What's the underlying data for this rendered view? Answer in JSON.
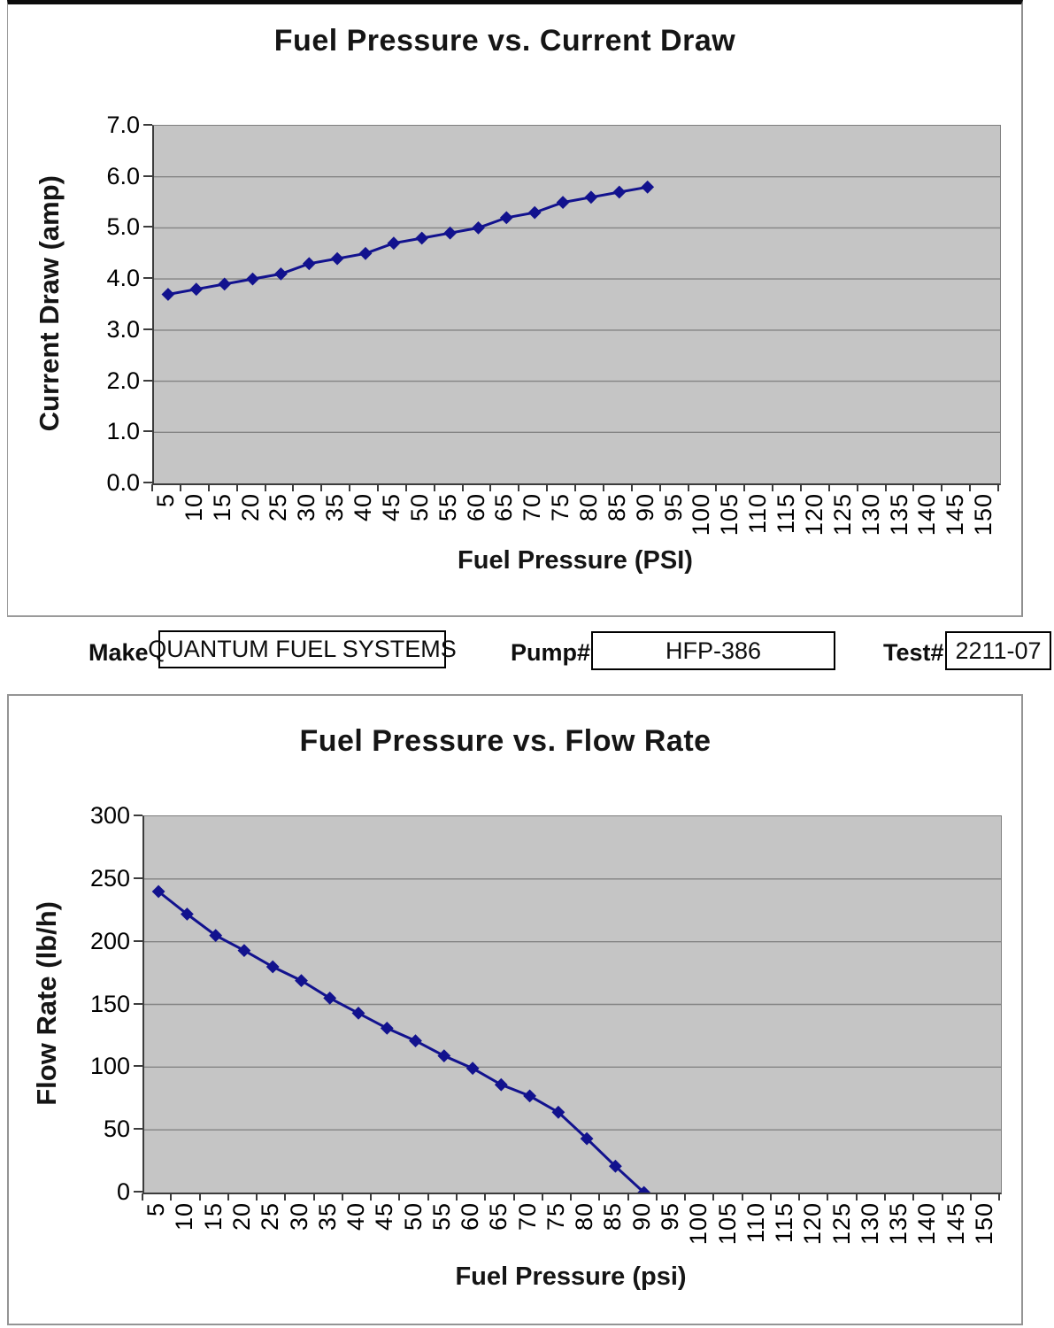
{
  "header_row": {
    "make_label": "Make",
    "make_value": "QUANTUM FUEL SYSTEMS",
    "pump_label": "Pump#",
    "pump_value": "HFP-386",
    "test_label": "Test#",
    "test_value": "2211-07"
  },
  "colors": {
    "plot_bg": "#c5c5c5",
    "gridline": "#848484",
    "series": "#12128e",
    "axis": "#3c3c3c"
  },
  "chart_data": [
    {
      "type": "line",
      "title": "Fuel Pressure vs. Current Draw",
      "xlabel": "Fuel Pressure (PSI)",
      "ylabel": "Current Draw (amp)",
      "ylim": [
        0,
        7
      ],
      "y_tick_labels": [
        "7.0",
        "6.0",
        "5.0",
        "4.0",
        "3.0",
        "2.0",
        "1.0",
        "0.0"
      ],
      "categories": [
        5,
        10,
        15,
        20,
        25,
        30,
        35,
        40,
        45,
        50,
        55,
        60,
        65,
        70,
        75,
        80,
        85,
        90,
        95,
        100,
        105,
        110,
        115,
        120,
        125,
        130,
        135,
        140,
        145,
        150
      ],
      "x": [
        5,
        10,
        15,
        20,
        25,
        30,
        35,
        40,
        45,
        50,
        55,
        60,
        65,
        70,
        75,
        80,
        85,
        90
      ],
      "values": [
        3.7,
        3.8,
        3.9,
        4.0,
        4.1,
        4.3,
        4.4,
        4.5,
        4.7,
        4.8,
        4.9,
        5.0,
        5.2,
        5.3,
        5.5,
        5.6,
        5.7,
        5.8
      ],
      "grid": true,
      "legend": "none",
      "marker": "diamond"
    },
    {
      "type": "line",
      "title": "Fuel Pressure vs. Flow Rate",
      "xlabel": "Fuel Pressure (psi)",
      "ylabel": "Flow Rate (lb/h)",
      "ylim": [
        0,
        300
      ],
      "y_tick_labels": [
        "300",
        "250",
        "200",
        "150",
        "100",
        "50",
        "0"
      ],
      "categories": [
        5,
        10,
        15,
        20,
        25,
        30,
        35,
        40,
        45,
        50,
        55,
        60,
        65,
        70,
        75,
        80,
        85,
        90,
        95,
        100,
        105,
        110,
        115,
        120,
        125,
        130,
        135,
        140,
        145,
        150
      ],
      "x": [
        5,
        10,
        15,
        20,
        25,
        30,
        35,
        40,
        45,
        50,
        55,
        60,
        65,
        70,
        75,
        80,
        85,
        90
      ],
      "values": [
        240,
        222,
        205,
        193,
        180,
        169,
        155,
        143,
        131,
        121,
        109,
        99,
        86,
        77,
        64,
        43,
        21,
        0
      ],
      "grid": true,
      "legend": "none",
      "marker": "diamond"
    }
  ]
}
